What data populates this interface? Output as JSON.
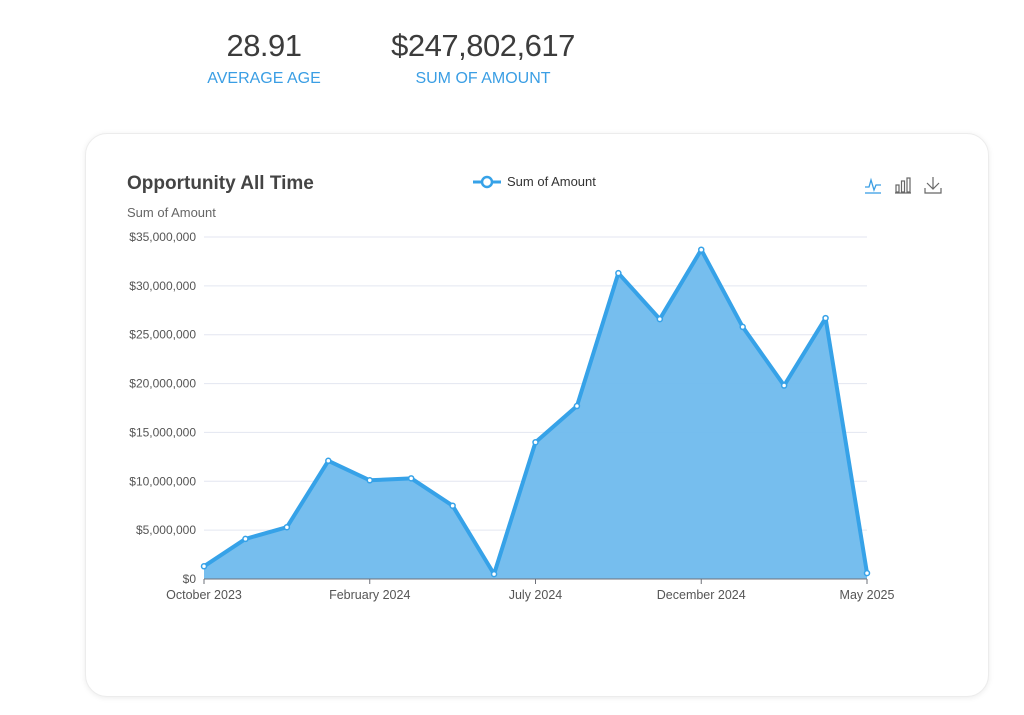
{
  "kpis": [
    {
      "value": "28.91",
      "label": "AVERAGE AGE"
    },
    {
      "value": "$247,802,617",
      "label": "SUM OF AMOUNT"
    }
  ],
  "toolbar": {
    "icons": [
      "line-chart-icon",
      "bar-chart-icon",
      "download-icon"
    ],
    "active": "line-chart-icon"
  },
  "colors": {
    "accent": "#3a9ee4",
    "area": "#6fbaed",
    "line": "#36a2e8"
  },
  "chart_data": {
    "type": "area",
    "title": "Opportunity All Time",
    "ylabel": "Sum of Amount",
    "legend": {
      "entries": [
        "Sum of Amount"
      ],
      "placement": "top-center"
    },
    "categories": [
      "October 2023",
      "",
      "",
      "",
      "February 2024",
      "",
      "",
      "",
      "July 2024",
      "",
      "",
      "",
      "December 2024",
      "",
      "",
      "",
      "May 2025"
    ],
    "series": [
      {
        "name": "Sum of Amount",
        "values": [
          1300000,
          4100000,
          5300000,
          12100000,
          10100000,
          10300000,
          7500000,
          500000,
          14000000,
          17700000,
          31300000,
          26600000,
          33700000,
          25800000,
          19800000,
          26700000,
          600000
        ]
      }
    ],
    "yticks": [
      "$0",
      "$5,000,000",
      "$10,000,000",
      "$15,000,000",
      "$20,000,000",
      "$25,000,000",
      "$30,000,000",
      "$35,000,000"
    ],
    "ylim": [
      0,
      35000000
    ],
    "grid": true
  }
}
